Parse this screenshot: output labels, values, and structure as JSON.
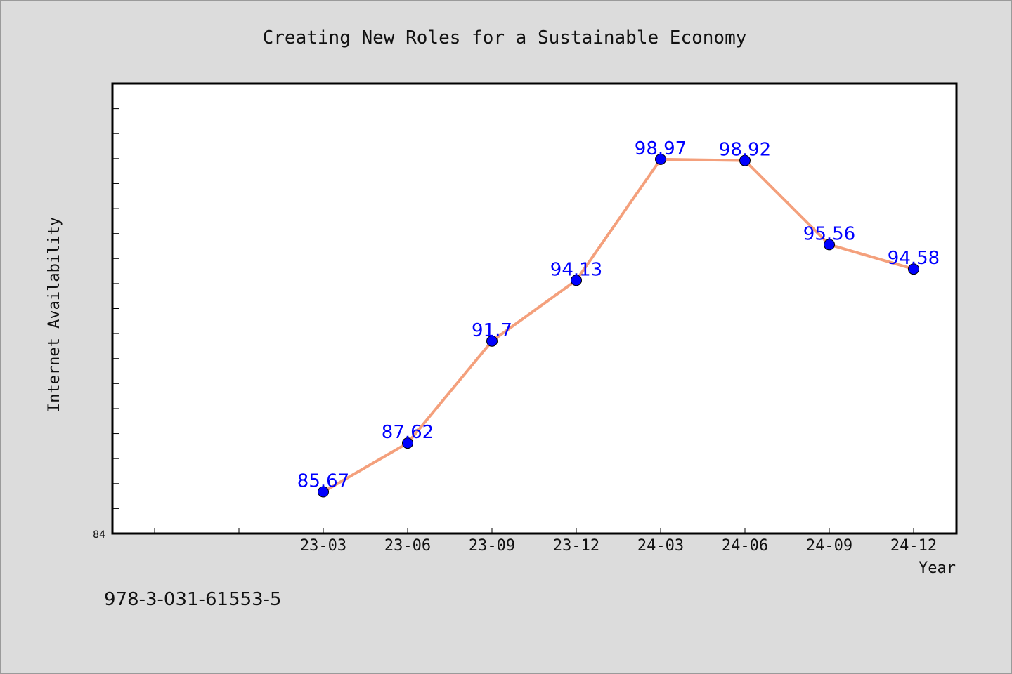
{
  "chart_data": {
    "type": "line",
    "title": "Creating New Roles for a Sustainable Economy",
    "xlabel": "Year",
    "ylabel": "Internet Availability",
    "categories": [
      "23-03",
      "23-06",
      "23-09",
      "23-12",
      "24-03",
      "24-06",
      "24-09",
      "24-12"
    ],
    "series": [
      {
        "values": [
          85.67,
          87.62,
          91.7,
          94.13,
          98.97,
          98.92,
          95.56,
          94.58
        ],
        "labels": [
          "85.67",
          "87.62",
          "91.7",
          "94.13",
          "98.97",
          "98.92",
          "95.56",
          "94.58"
        ],
        "line_color": "#f4a07c",
        "marker_color": "#0000ff"
      }
    ],
    "y_min_label": "84",
    "ylim": [
      84,
      102
    ],
    "grid": false,
    "legend": "none"
  },
  "footer": {
    "isbn": "978-3-031-61553-5"
  }
}
